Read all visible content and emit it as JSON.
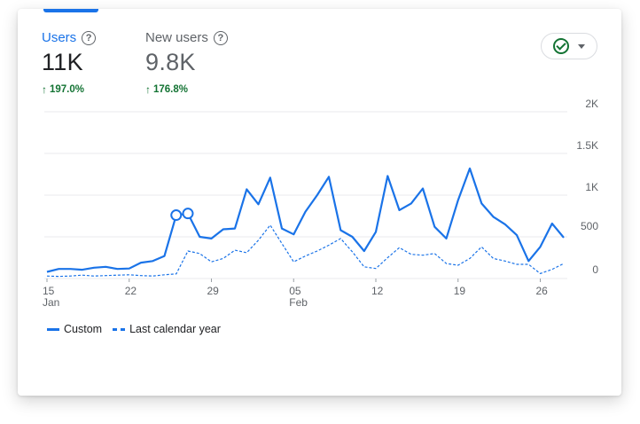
{
  "metrics": [
    {
      "label": "Users",
      "value": "11K",
      "change": "197.0%",
      "active": true
    },
    {
      "label": "New users",
      "value": "9.8K",
      "change": "176.8%",
      "active": false
    }
  ],
  "icons": {
    "help": "help-circle-icon",
    "status": "check-circle-icon",
    "dropdown": "caret-down-icon",
    "trend": "arrow-up-icon"
  },
  "colors": {
    "accent": "#1a73e8",
    "positive": "#137333",
    "grid": "#e8eaed"
  },
  "legend": {
    "custom": "Custom",
    "previous": "Last calendar year"
  },
  "chart_data": {
    "type": "line",
    "title": "",
    "xlabel": "",
    "ylabel": "",
    "ylim": [
      0,
      2000
    ],
    "yticks": [
      {
        "value": 0,
        "label": "0"
      },
      {
        "value": 500,
        "label": "500"
      },
      {
        "value": 1000,
        "label": "1K"
      },
      {
        "value": 1500,
        "label": "1.5K"
      },
      {
        "value": 2000,
        "label": "2K"
      }
    ],
    "x": [
      "Jan 15",
      "Jan 16",
      "Jan 17",
      "Jan 18",
      "Jan 19",
      "Jan 20",
      "Jan 21",
      "Jan 22",
      "Jan 23",
      "Jan 24",
      "Jan 25",
      "Jan 26",
      "Jan 27",
      "Jan 28",
      "Jan 29",
      "Jan 30",
      "Jan 31",
      "Feb 01",
      "Feb 02",
      "Feb 03",
      "Feb 04",
      "Feb 05",
      "Feb 06",
      "Feb 07",
      "Feb 08",
      "Feb 09",
      "Feb 10",
      "Feb 11",
      "Feb 12",
      "Feb 13",
      "Feb 14",
      "Feb 15",
      "Feb 16",
      "Feb 17",
      "Feb 18",
      "Feb 19",
      "Feb 20",
      "Feb 21",
      "Feb 22",
      "Feb 23",
      "Feb 24",
      "Feb 25",
      "Feb 26",
      "Feb 27",
      "Feb 28"
    ],
    "xticks": [
      {
        "index": 0,
        "label": "15",
        "sublabel": "Jan"
      },
      {
        "index": 7,
        "label": "22",
        "sublabel": ""
      },
      {
        "index": 14,
        "label": "29",
        "sublabel": ""
      },
      {
        "index": 21,
        "label": "05",
        "sublabel": "Feb"
      },
      {
        "index": 28,
        "label": "12",
        "sublabel": ""
      },
      {
        "index": 35,
        "label": "19",
        "sublabel": ""
      },
      {
        "index": 42,
        "label": "26",
        "sublabel": ""
      }
    ],
    "series": [
      {
        "name": "Custom",
        "style": "solid",
        "values": [
          80,
          115,
          115,
          105,
          130,
          140,
          115,
          120,
          190,
          210,
          270,
          760,
          780,
          500,
          480,
          590,
          600,
          1070,
          890,
          1210,
          600,
          530,
          800,
          1000,
          1220,
          580,
          500,
          330,
          560,
          1230,
          820,
          900,
          1080,
          620,
          480,
          940,
          1320,
          900,
          740,
          650,
          520,
          210,
          380,
          660,
          490
        ],
        "markers": [
          11,
          12
        ]
      },
      {
        "name": "Last calendar year",
        "style": "dashed",
        "values": [
          30,
          25,
          30,
          40,
          30,
          35,
          40,
          45,
          35,
          30,
          45,
          55,
          330,
          300,
          200,
          240,
          340,
          310,
          460,
          640,
          420,
          200,
          270,
          330,
          400,
          480,
          320,
          140,
          120,
          250,
          370,
          290,
          280,
          300,
          180,
          160,
          240,
          380,
          240,
          210,
          170,
          170,
          60,
          110,
          180
        ]
      }
    ]
  }
}
